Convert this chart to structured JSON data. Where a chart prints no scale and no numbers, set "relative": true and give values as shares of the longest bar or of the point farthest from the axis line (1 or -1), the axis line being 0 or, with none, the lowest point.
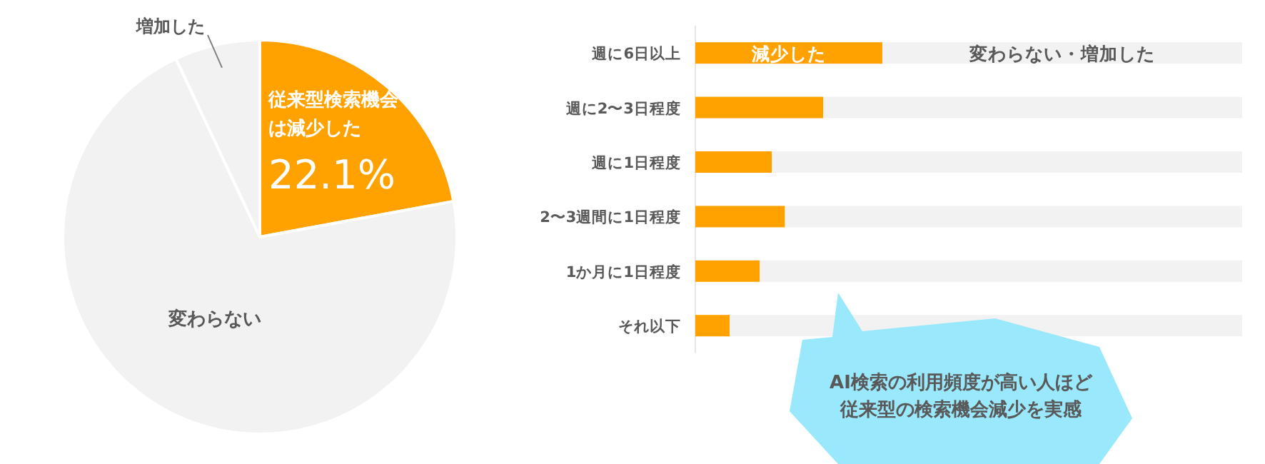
{
  "chart_data": [
    {
      "type": "pie",
      "categories": [
        "従来型検索機会は減少した",
        "変わらない",
        "増加した"
      ],
      "values": [
        22.1,
        70.9,
        7.0
      ],
      "colors": [
        "#ffa200",
        "#f2f2f2",
        "#f2f2f2"
      ],
      "value_labels": [
        "22.1%",
        null,
        null
      ]
    },
    {
      "type": "bar",
      "orientation": "horizontal",
      "stacked": true,
      "relative": true,
      "categories": [
        "週に6日以上",
        "週に2〜3日程度",
        "週に1日程度",
        "2〜3週間に1日程度",
        "1か月に1日程度",
        "それ以下"
      ],
      "series": [
        {
          "name": "減少した",
          "color": "#ffa200",
          "values": [
            0.342,
            0.234,
            0.14,
            0.164,
            0.118,
            0.063
          ]
        },
        {
          "name": "変わらない・増加した",
          "color": "#f2f2f2",
          "values": [
            0.658,
            0.766,
            0.86,
            0.836,
            0.882,
            0.937
          ]
        }
      ],
      "annotations": [
        "AI検索の利用頻度が高い人ほど",
        "従来型の検索機会減少を実感"
      ]
    }
  ]
}
